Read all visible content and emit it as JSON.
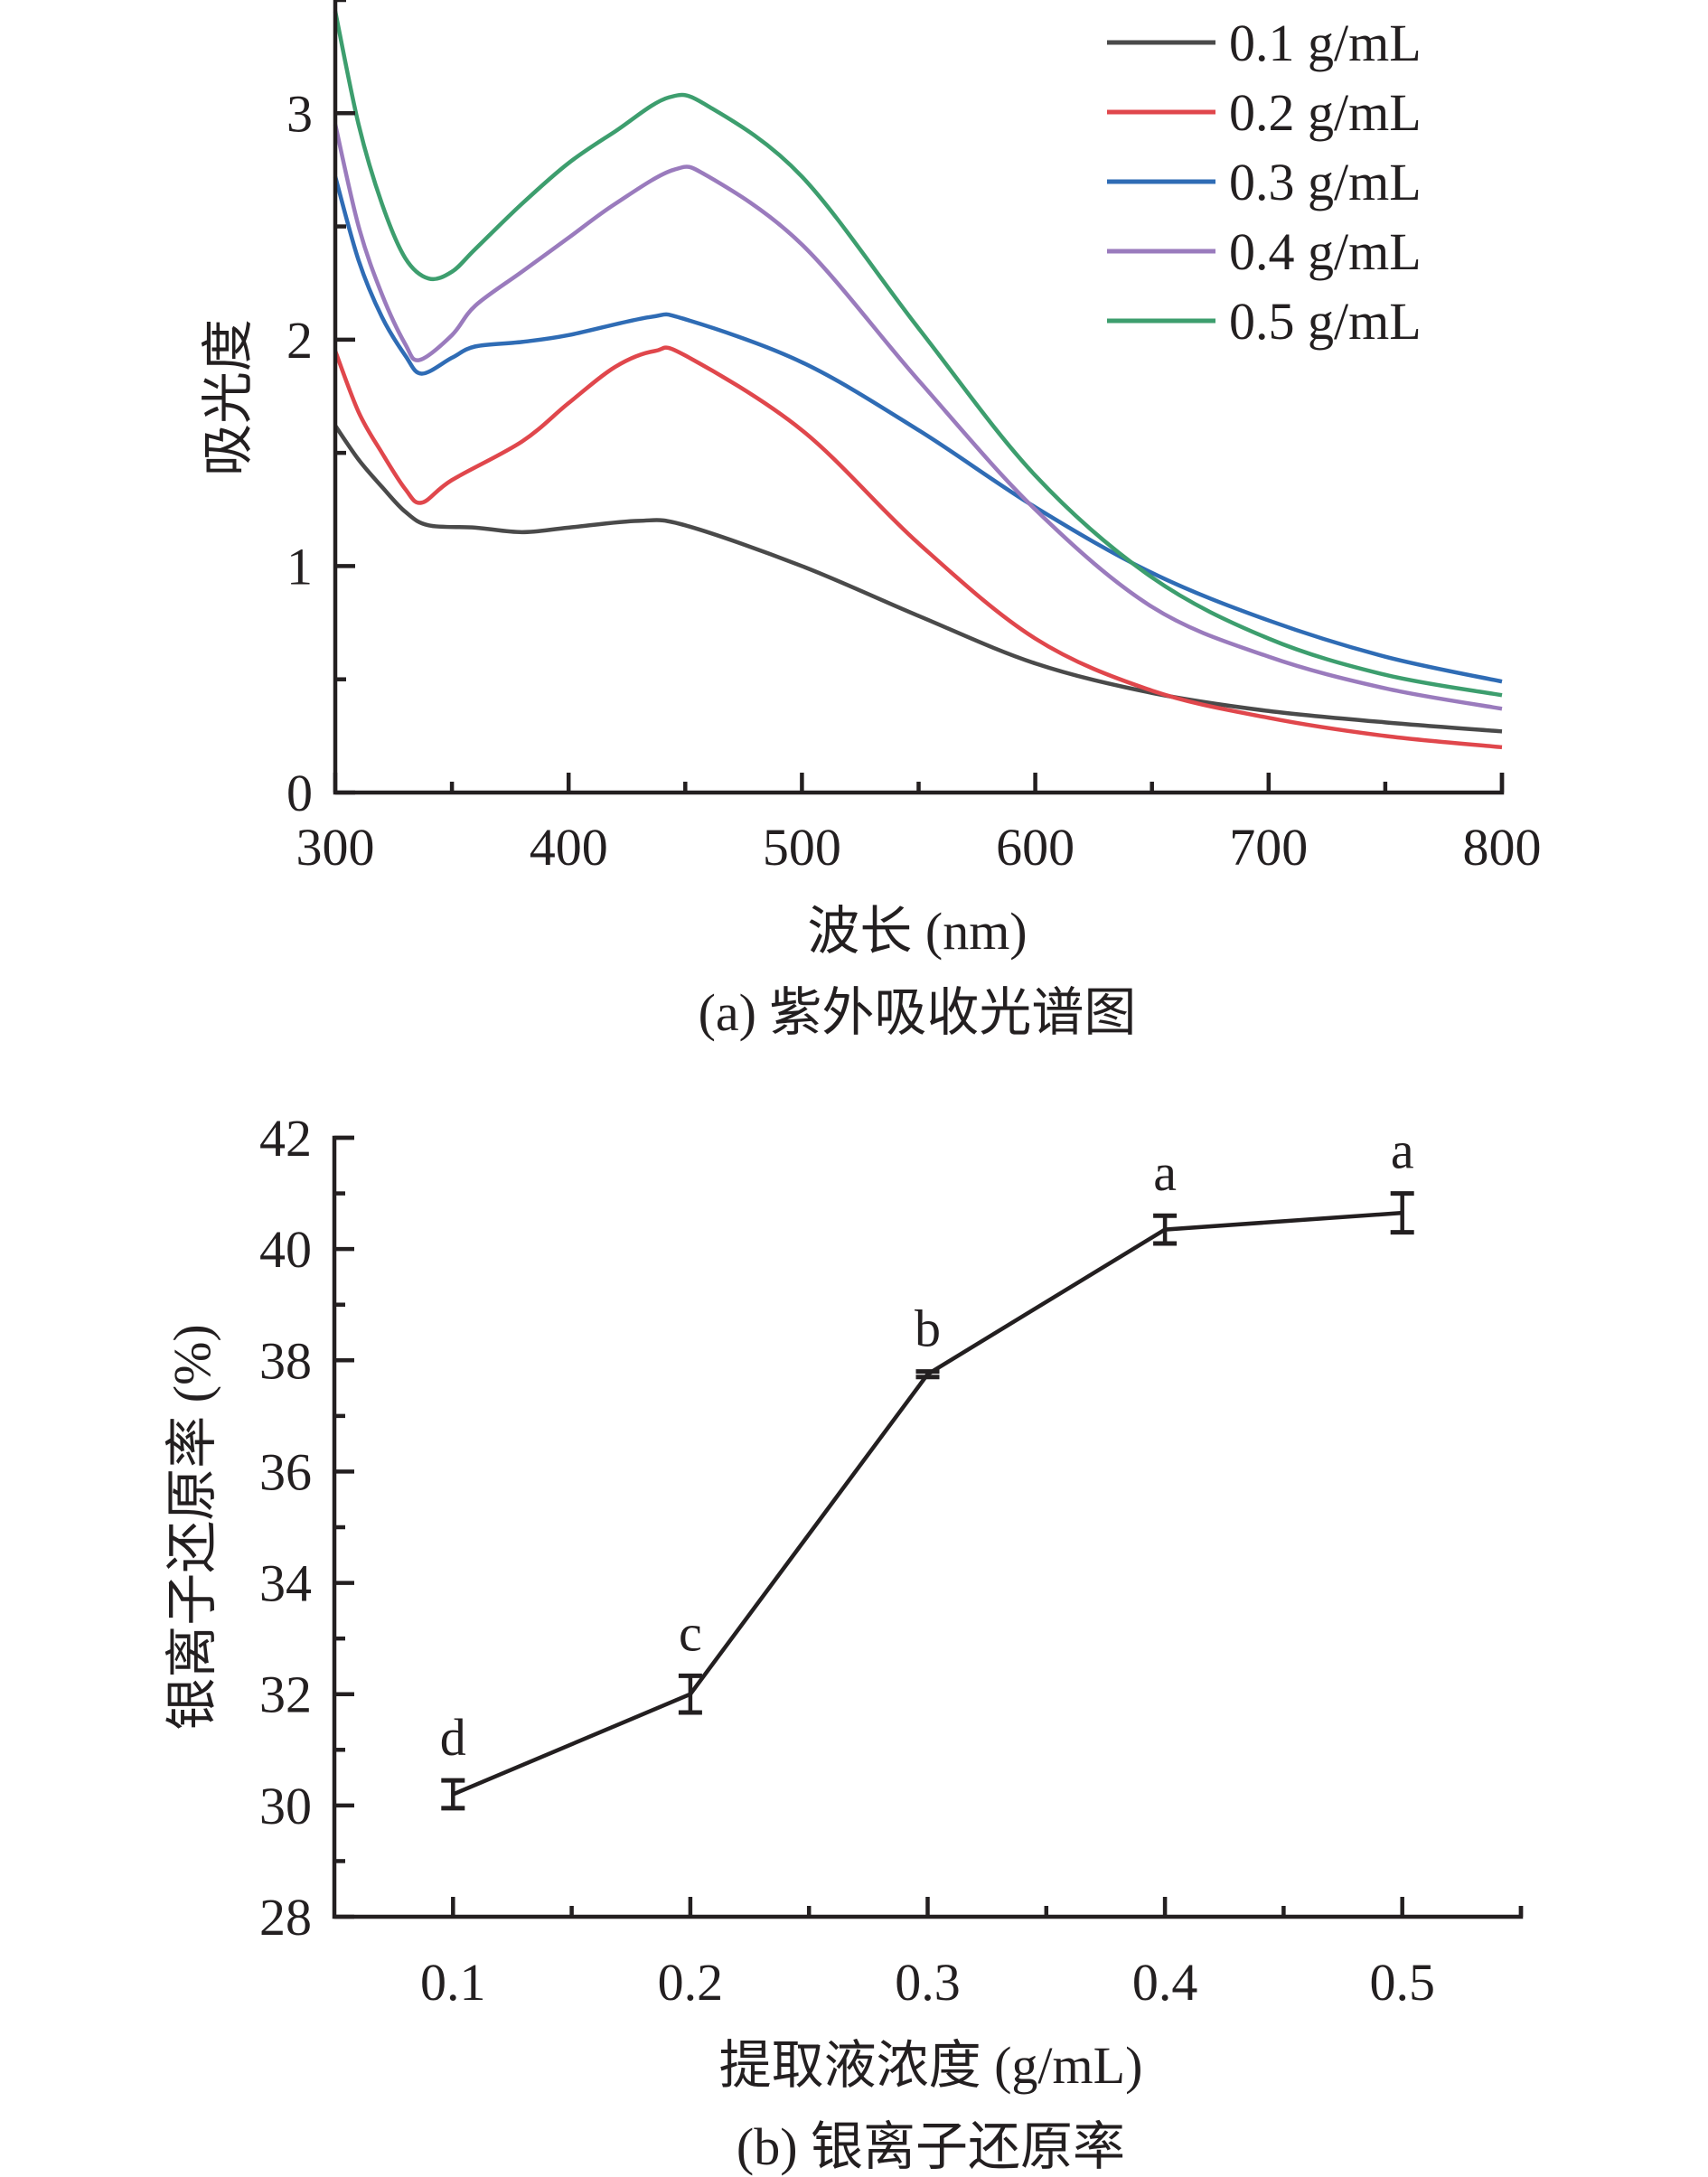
{
  "chart_data": [
    {
      "type": "line",
      "panel": "a",
      "caption": "(a) 紫外吸收光谱图",
      "xlabel": "波长 (nm)",
      "ylabel": "吸光度",
      "xlim": [
        300,
        800
      ],
      "ylim": [
        0,
        3.5
      ],
      "xticks": [
        300,
        400,
        500,
        600,
        700,
        800
      ],
      "xticks_minor": [
        350,
        450,
        550,
        650,
        750
      ],
      "yticks": [
        0,
        1,
        2,
        3
      ],
      "yticks_minor": [
        0.5,
        1.5,
        2.5,
        3.5
      ],
      "grid": false,
      "legend_position": "top-right",
      "series": [
        {
          "name": "0.1 g/mL",
          "color": "#4a4a4a",
          "x": [
            300,
            310,
            320,
            330,
            340,
            360,
            380,
            400,
            430,
            450,
            500,
            550,
            600,
            650,
            700,
            750,
            800
          ],
          "y": [
            1.62,
            1.47,
            1.35,
            1.24,
            1.18,
            1.17,
            1.15,
            1.17,
            1.2,
            1.18,
            1.0,
            0.78,
            0.57,
            0.44,
            0.36,
            0.31,
            0.27
          ]
        },
        {
          "name": "0.2 g/mL",
          "color": "#e0474c",
          "x": [
            300,
            310,
            320,
            330,
            337,
            350,
            380,
            400,
            420,
            437,
            450,
            500,
            550,
            600,
            650,
            700,
            750,
            800
          ],
          "y": [
            1.95,
            1.68,
            1.5,
            1.34,
            1.28,
            1.38,
            1.55,
            1.72,
            1.88,
            1.95,
            1.93,
            1.6,
            1.1,
            0.68,
            0.45,
            0.33,
            0.25,
            0.2
          ]
        },
        {
          "name": "0.3 g/mL",
          "color": "#2f6cb5",
          "x": [
            300,
            310,
            320,
            330,
            337,
            350,
            360,
            380,
            400,
            435,
            450,
            500,
            550,
            600,
            650,
            700,
            750,
            800
          ],
          "y": [
            2.72,
            2.35,
            2.1,
            1.93,
            1.85,
            1.92,
            1.97,
            1.99,
            2.02,
            2.1,
            2.09,
            1.9,
            1.6,
            1.26,
            0.97,
            0.76,
            0.6,
            0.49
          ]
        },
        {
          "name": "0.4 g/mL",
          "color": "#9a7bbd",
          "x": [
            300,
            310,
            320,
            330,
            336,
            350,
            360,
            380,
            400,
            420,
            445,
            460,
            500,
            550,
            600,
            650,
            700,
            750,
            800
          ],
          "y": [
            2.95,
            2.5,
            2.2,
            1.98,
            1.91,
            2.02,
            2.15,
            2.3,
            2.45,
            2.6,
            2.75,
            2.72,
            2.42,
            1.82,
            1.25,
            0.82,
            0.6,
            0.46,
            0.37
          ]
        },
        {
          "name": "0.5 g/mL",
          "color": "#3d9e6e",
          "x": [
            300,
            310,
            320,
            330,
            340,
            350,
            360,
            380,
            400,
            420,
            443,
            460,
            500,
            550,
            600,
            650,
            700,
            750,
            800
          ],
          "y": [
            3.45,
            2.95,
            2.6,
            2.36,
            2.27,
            2.3,
            2.4,
            2.6,
            2.78,
            2.92,
            3.07,
            3.03,
            2.72,
            2.05,
            1.4,
            0.95,
            0.68,
            0.52,
            0.43
          ]
        }
      ]
    },
    {
      "type": "line",
      "panel": "b",
      "caption": "(b) 银离子还原率",
      "xlabel": "提取液浓度 (g/mL)",
      "ylabel": "银离子还原率 (%)",
      "xlim": [
        0.05,
        0.55
      ],
      "ylim": [
        28,
        42
      ],
      "xticks": [
        "0.1",
        "0.2",
        "0.3",
        "0.4",
        "0.5"
      ],
      "xticks_minor": [
        0.15,
        0.25,
        0.35,
        0.45,
        0.55
      ],
      "yticks": [
        28,
        30,
        32,
        34,
        36,
        38,
        40,
        42
      ],
      "yticks_minor": [
        29,
        31,
        33,
        35,
        37,
        39,
        41
      ],
      "grid": false,
      "color": "#231f20",
      "series": [
        {
          "name": "银离子还原率",
          "x": [
            0.1,
            0.2,
            0.3,
            0.4,
            0.5
          ],
          "y": [
            30.2,
            32.0,
            37.75,
            40.35,
            40.65
          ],
          "error": [
            0.25,
            0.33,
            0.05,
            0.25,
            0.35
          ],
          "significance": [
            "d",
            "c",
            "b",
            "a",
            "a"
          ]
        }
      ]
    }
  ]
}
